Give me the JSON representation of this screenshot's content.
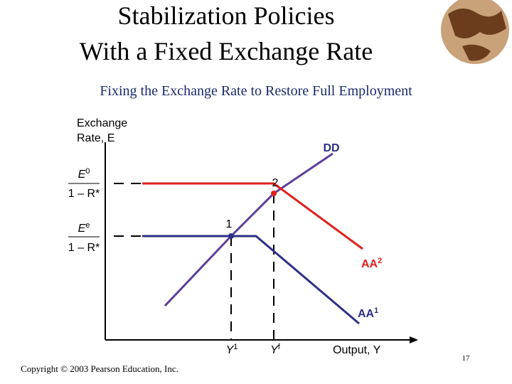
{
  "header": {
    "title": [
      "Stabilization Policies",
      "With a Fixed Exchange Rate"
    ],
    "subtitle": "Fixing the Exchange Rate to Restore Full Employment"
  },
  "diagram": {
    "y_axis_label": [
      "Exchange",
      "Rate, E"
    ],
    "x_axis_label": "Output, Y",
    "y_levels": [
      {
        "numerator": {
          "base": "E",
          "sup": "0"
        },
        "denominator": "1 – R*"
      },
      {
        "numerator": {
          "base": "E",
          "sup": "e"
        },
        "denominator": "1 – R*"
      }
    ],
    "curves": [
      {
        "base": "DD"
      },
      {
        "base": "AA",
        "sup": "2"
      },
      {
        "base": "AA",
        "sup": "1"
      }
    ],
    "points": [
      "1",
      "2"
    ],
    "x_levels": [
      {
        "base": "Y",
        "sup": "1"
      },
      {
        "base": "Y",
        "sup": "f"
      }
    ]
  },
  "footer": {
    "copyright": "Copyright © 2003 Pearson Education, Inc.",
    "page": "17"
  }
}
